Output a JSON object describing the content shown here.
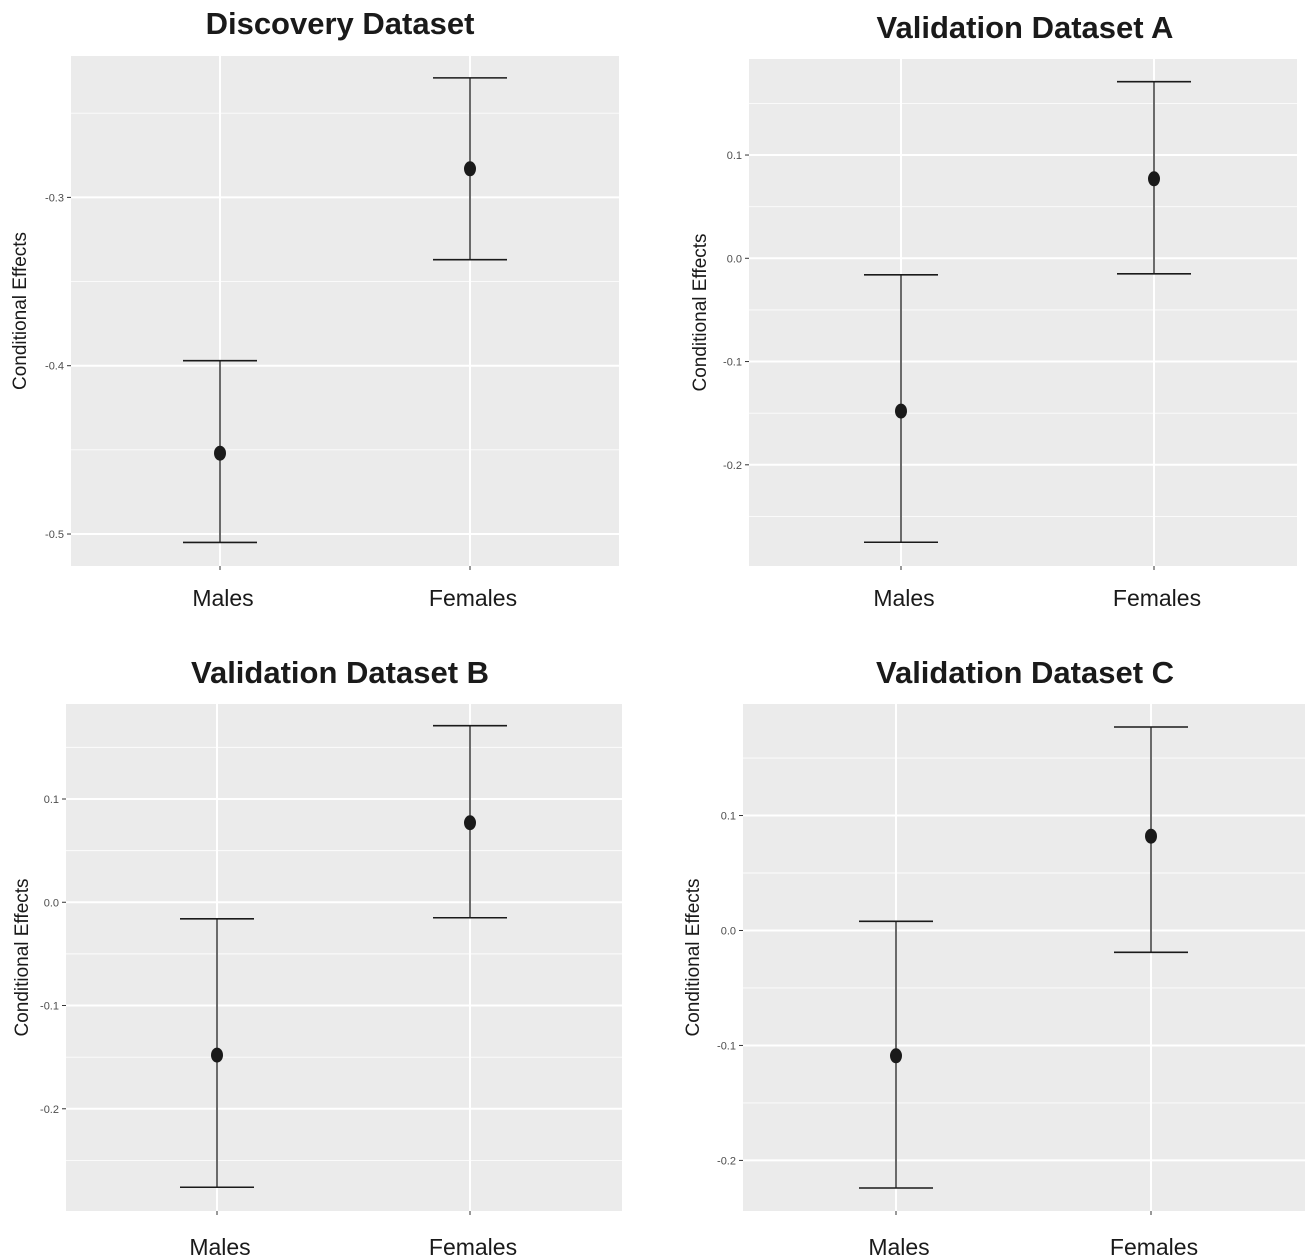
{
  "chart_data": [
    {
      "type": "scatter",
      "title": "Discovery Dataset",
      "ylabel": "Conditional Effects",
      "xlabel": "",
      "categories": [
        "Males",
        "Females"
      ],
      "values": [
        -0.452,
        -0.283
      ],
      "lower": [
        -0.505,
        -0.337
      ],
      "upper": [
        -0.397,
        -0.229
      ],
      "ylim": [
        -0.519,
        -0.216
      ],
      "yticks": [
        -0.3,
        -0.4,
        -0.5
      ],
      "ytick_labels": [
        "-0.3",
        "-0.4",
        "-0.5"
      ],
      "grid": true
    },
    {
      "type": "scatter",
      "title": "Validation Dataset A",
      "ylabel": "Conditional Effects",
      "xlabel": "",
      "categories": [
        "Males",
        "Females"
      ],
      "values": [
        -0.148,
        0.077
      ],
      "lower": [
        -0.275,
        -0.015
      ],
      "upper": [
        -0.016,
        0.171
      ],
      "ylim": [
        -0.298,
        0.193
      ],
      "yticks": [
        0.1,
        0.0,
        -0.1,
        -0.2
      ],
      "ytick_labels": [
        "0.1",
        "0.0",
        "-0.1",
        "-0.2"
      ],
      "grid": true
    },
    {
      "type": "scatter",
      "title": "Validation Dataset B",
      "ylabel": "Conditional Effects",
      "xlabel": "",
      "categories": [
        "Males",
        "Females"
      ],
      "values": [
        -0.148,
        0.077
      ],
      "lower": [
        -0.276,
        -0.015
      ],
      "upper": [
        -0.016,
        0.171
      ],
      "ylim": [
        -0.299,
        0.192
      ],
      "yticks": [
        0.1,
        0.0,
        -0.1,
        -0.2
      ],
      "ytick_labels": [
        "0.1",
        "0.0",
        "-0.1",
        "-0.2"
      ],
      "grid": true
    },
    {
      "type": "scatter",
      "title": "Validation Dataset C",
      "ylabel": "Conditional Effects",
      "xlabel": "",
      "categories": [
        "Males",
        "Females"
      ],
      "values": [
        -0.109,
        0.082
      ],
      "lower": [
        -0.224,
        -0.019
      ],
      "upper": [
        0.008,
        0.177
      ],
      "ylim": [
        -0.244,
        0.197
      ],
      "yticks": [
        0.1,
        0.0,
        -0.1,
        -0.2
      ],
      "ytick_labels": [
        "0.1",
        "0.0",
        "-0.1",
        "-0.2"
      ],
      "grid": true
    }
  ],
  "colors": {
    "panel_background": "#ebebeb",
    "grid": "#ffffff",
    "marks": "#1a1a1a",
    "tick_text": "#4d4d4d"
  }
}
